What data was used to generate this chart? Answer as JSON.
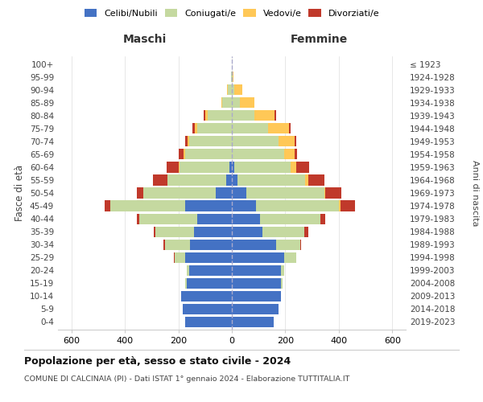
{
  "age_groups": [
    "0-4",
    "5-9",
    "10-14",
    "15-19",
    "20-24",
    "25-29",
    "30-34",
    "35-39",
    "40-44",
    "45-49",
    "50-54",
    "55-59",
    "60-64",
    "65-69",
    "70-74",
    "75-79",
    "80-84",
    "85-89",
    "90-94",
    "95-99",
    "100+"
  ],
  "birth_years": [
    "2019-2023",
    "2014-2018",
    "2009-2013",
    "2004-2008",
    "1999-2003",
    "1994-1998",
    "1989-1993",
    "1984-1988",
    "1979-1983",
    "1974-1978",
    "1969-1973",
    "1964-1968",
    "1959-1963",
    "1954-1958",
    "1949-1953",
    "1944-1948",
    "1939-1943",
    "1934-1938",
    "1929-1933",
    "1924-1928",
    "≤ 1923"
  ],
  "males": {
    "celibi": [
      175,
      185,
      190,
      170,
      160,
      175,
      155,
      140,
      130,
      175,
      60,
      20,
      10,
      0,
      0,
      0,
      0,
      0,
      0,
      0,
      0
    ],
    "coniugati": [
      0,
      0,
      0,
      5,
      10,
      40,
      95,
      145,
      215,
      280,
      270,
      220,
      185,
      175,
      160,
      130,
      90,
      35,
      15,
      2,
      0
    ],
    "vedovi": [
      0,
      0,
      0,
      0,
      0,
      0,
      0,
      0,
      0,
      0,
      0,
      0,
      3,
      5,
      5,
      8,
      10,
      5,
      2,
      0,
      0
    ],
    "divorziati": [
      0,
      0,
      0,
      0,
      0,
      2,
      5,
      8,
      10,
      20,
      25,
      55,
      45,
      20,
      10,
      10,
      5,
      0,
      0,
      0,
      0
    ]
  },
  "females": {
    "nubili": [
      155,
      175,
      185,
      185,
      185,
      195,
      165,
      115,
      105,
      90,
      55,
      20,
      10,
      0,
      0,
      0,
      0,
      0,
      0,
      0,
      0
    ],
    "coniugate": [
      0,
      0,
      0,
      5,
      10,
      45,
      90,
      155,
      225,
      310,
      290,
      255,
      210,
      195,
      175,
      135,
      85,
      30,
      10,
      2,
      0
    ],
    "vedove": [
      0,
      0,
      0,
      0,
      0,
      0,
      0,
      0,
      0,
      5,
      5,
      10,
      20,
      40,
      60,
      80,
      75,
      55,
      30,
      5,
      0
    ],
    "divorziate": [
      0,
      0,
      0,
      0,
      0,
      2,
      5,
      15,
      20,
      55,
      60,
      60,
      50,
      10,
      5,
      5,
      5,
      0,
      0,
      0,
      0
    ]
  },
  "colors": {
    "celibi": "#4472c4",
    "coniugati": "#c5d9a0",
    "vedovi": "#ffc857",
    "divorziati": "#c0392b"
  },
  "xlim": 650,
  "title": "Popolazione per età, sesso e stato civile - 2024",
  "subtitle": "COMUNE DI CALCINAIA (PI) - Dati ISTAT 1° gennaio 2024 - Elaborazione TUTTITALIA.IT",
  "ylabel_left": "Fasce di età",
  "ylabel_right": "Anni di nascita",
  "xlabel_left": "Maschi",
  "xlabel_right": "Femmine"
}
